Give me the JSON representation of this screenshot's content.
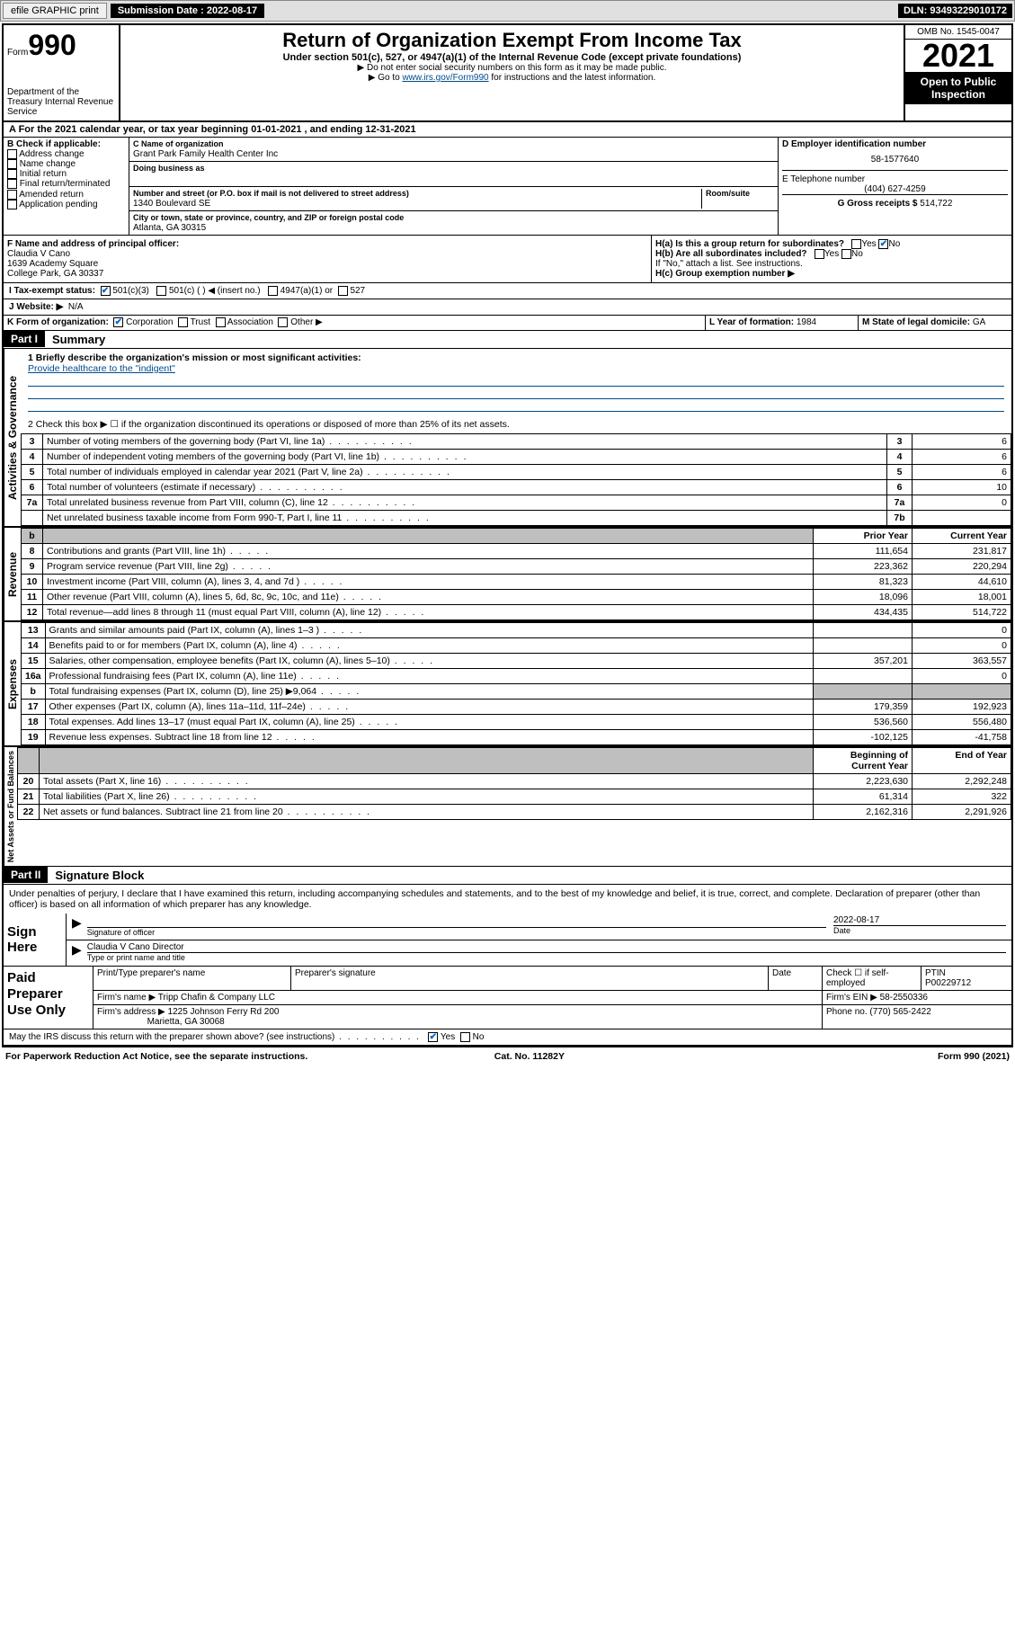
{
  "toolbar": {
    "efile": "efile GRAPHIC print",
    "sub_label": "Submission Date : 2022-08-17",
    "dln": "DLN: 93493229010172"
  },
  "header": {
    "form_prefix": "Form",
    "form_no": "990",
    "dept": "Department of the Treasury Internal Revenue Service",
    "title": "Return of Organization Exempt From Income Tax",
    "sub": "Under section 501(c), 527, or 4947(a)(1) of the Internal Revenue Code (except private foundations)",
    "note1": "▶ Do not enter social security numbers on this form as it may be made public.",
    "note2_pre": "▶ Go to ",
    "note2_link": "www.irs.gov/Form990",
    "note2_post": " for instructions and the latest information.",
    "omb": "OMB No. 1545-0047",
    "year": "2021",
    "open": "Open to Public Inspection"
  },
  "calyear": "A For the 2021 calendar year, or tax year beginning 01-01-2021    , and ending 12-31-2021",
  "box_b": {
    "title": "B Check if applicable:",
    "items": [
      "Address change",
      "Name change",
      "Initial return",
      "Final return/terminated",
      "Amended return",
      "Application pending"
    ]
  },
  "box_c": {
    "name_label": "C Name of organization",
    "name": "Grant Park Family Health Center Inc",
    "dba_label": "Doing business as",
    "street_label": "Number and street (or P.O. box if mail is not delivered to street address)",
    "room_label": "Room/suite",
    "street": "1340 Boulevard SE",
    "city_label": "City or town, state or province, country, and ZIP or foreign postal code",
    "city": "Atlanta, GA  30315"
  },
  "box_d": {
    "label": "D Employer identification number",
    "value": "58-1577640"
  },
  "box_e": {
    "label": "E Telephone number",
    "value": "(404) 627-4259"
  },
  "box_g": {
    "label": "G Gross receipts $",
    "value": "514,722"
  },
  "box_f": {
    "label": "F  Name and address of principal officer:",
    "name": "Claudia V Cano",
    "addr1": "1639 Academy Square",
    "addr2": "College Park, GA  30337"
  },
  "box_h": {
    "ha": "H(a)  Is this a group return for subordinates?",
    "hb": "H(b)  Are all subordinates included?",
    "hb_note": "If \"No,\" attach a list. See instructions.",
    "hc": "H(c)  Group exemption number ▶",
    "yes": "Yes",
    "no": "No"
  },
  "tax_status": {
    "label": "I    Tax-exempt status:",
    "c3": "501(c)(3)",
    "c_other": "501(c) (  ) ◀ (insert no.)",
    "c4947": "4947(a)(1) or",
    "c527": "527"
  },
  "website": {
    "label": "J   Website: ▶",
    "value": "N/A"
  },
  "box_k": {
    "label": "K Form of organization:",
    "corp": "Corporation",
    "trust": "Trust",
    "assoc": "Association",
    "other": "Other ▶"
  },
  "box_l": {
    "label": "L Year of formation:",
    "value": "1984"
  },
  "box_m": {
    "label": "M State of legal domicile:",
    "value": "GA"
  },
  "part1": {
    "header": "Part I",
    "title": "Summary"
  },
  "summary": {
    "mission_label": "1   Briefly describe the organization's mission or most significant activities:",
    "mission": "Provide healthcare to the \"indigent\"",
    "line2": "2   Check this box ▶ ☐  if the organization discontinued its operations or disposed of more than 25% of its net assets.",
    "rows_ag": [
      {
        "n": "3",
        "t": "Number of voting members of the governing body (Part VI, line 1a)",
        "k": "3",
        "v": "6"
      },
      {
        "n": "4",
        "t": "Number of independent voting members of the governing body (Part VI, line 1b)",
        "k": "4",
        "v": "6"
      },
      {
        "n": "5",
        "t": "Total number of individuals employed in calendar year 2021 (Part V, line 2a)",
        "k": "5",
        "v": "6"
      },
      {
        "n": "6",
        "t": "Total number of volunteers (estimate if necessary)",
        "k": "6",
        "v": "10"
      },
      {
        "n": "7a",
        "t": "Total unrelated business revenue from Part VIII, column (C), line 12",
        "k": "7a",
        "v": "0"
      },
      {
        "n": "",
        "t": "Net unrelated business taxable income from Form 990-T, Part I, line 11",
        "k": "7b",
        "v": ""
      }
    ],
    "col_prior": "Prior Year",
    "col_curr": "Current Year",
    "rows_rev": [
      {
        "n": "8",
        "t": "Contributions and grants (Part VIII, line 1h)",
        "p": "111,654",
        "c": "231,817"
      },
      {
        "n": "9",
        "t": "Program service revenue (Part VIII, line 2g)",
        "p": "223,362",
        "c": "220,294"
      },
      {
        "n": "10",
        "t": "Investment income (Part VIII, column (A), lines 3, 4, and 7d )",
        "p": "81,323",
        "c": "44,610"
      },
      {
        "n": "11",
        "t": "Other revenue (Part VIII, column (A), lines 5, 6d, 8c, 9c, 10c, and 11e)",
        "p": "18,096",
        "c": "18,001"
      },
      {
        "n": "12",
        "t": "Total revenue—add lines 8 through 11 (must equal Part VIII, column (A), line 12)",
        "p": "434,435",
        "c": "514,722"
      }
    ],
    "rows_exp": [
      {
        "n": "13",
        "t": "Grants and similar amounts paid (Part IX, column (A), lines 1–3 )",
        "p": "",
        "c": "0"
      },
      {
        "n": "14",
        "t": "Benefits paid to or for members (Part IX, column (A), line 4)",
        "p": "",
        "c": "0"
      },
      {
        "n": "15",
        "t": "Salaries, other compensation, employee benefits (Part IX, column (A), lines 5–10)",
        "p": "357,201",
        "c": "363,557"
      },
      {
        "n": "16a",
        "t": "Professional fundraising fees (Part IX, column (A), line 11e)",
        "p": "",
        "c": "0"
      },
      {
        "n": "b",
        "t": "Total fundraising expenses (Part IX, column (D), line 25) ▶9,064",
        "p": "GREY",
        "c": "GREY"
      },
      {
        "n": "17",
        "t": "Other expenses (Part IX, column (A), lines 11a–11d, 11f–24e)",
        "p": "179,359",
        "c": "192,923"
      },
      {
        "n": "18",
        "t": "Total expenses. Add lines 13–17 (must equal Part IX, column (A), line 25)",
        "p": "536,560",
        "c": "556,480"
      },
      {
        "n": "19",
        "t": "Revenue less expenses. Subtract line 18 from line 12",
        "p": "-102,125",
        "c": "-41,758"
      }
    ],
    "col_begin": "Beginning of Current Year",
    "col_end": "End of Year",
    "rows_net": [
      {
        "n": "20",
        "t": "Total assets (Part X, line 16)",
        "p": "2,223,630",
        "c": "2,292,248"
      },
      {
        "n": "21",
        "t": "Total liabilities (Part X, line 26)",
        "p": "61,314",
        "c": "322"
      },
      {
        "n": "22",
        "t": "Net assets or fund balances. Subtract line 21 from line 20",
        "p": "2,162,316",
        "c": "2,291,926"
      }
    ],
    "vlabels": {
      "ag": "Activities & Governance",
      "rev": "Revenue",
      "exp": "Expenses",
      "net": "Net Assets or Fund Balances"
    }
  },
  "part2": {
    "header": "Part II",
    "title": "Signature Block"
  },
  "sig": {
    "decl": "Under penalties of perjury, I declare that I have examined this return, including accompanying schedules and statements, and to the best of my knowledge and belief, it is true, correct, and complete. Declaration of preparer (other than officer) is based on all information of which preparer has any knowledge.",
    "sign_here": "Sign Here",
    "sig_officer": "Signature of officer",
    "date": "Date",
    "sig_date": "2022-08-17",
    "name_title": "Claudia V Cano  Director",
    "type_label": "Type or print name and title"
  },
  "paid": {
    "label": "Paid Preparer Use Only",
    "print_name": "Print/Type preparer's name",
    "prep_sig": "Preparer's signature",
    "date": "Date",
    "check_if": "Check ☐ if self-employed",
    "ptin_label": "PTIN",
    "ptin": "P00229712",
    "firm_name_label": "Firm's name   ▶",
    "firm_name": "Tripp Chafin & Company LLC",
    "firm_ein_label": "Firm's EIN ▶",
    "firm_ein": "58-2550336",
    "firm_addr_label": "Firm's address ▶",
    "firm_addr1": "1225 Johnson Ferry Rd 200",
    "firm_addr2": "Marietta, GA  30068",
    "phone_label": "Phone no.",
    "phone": "(770) 565-2422"
  },
  "may_irs": "May the IRS discuss this return with the preparer shown above? (see instructions)",
  "footer": {
    "left": "For Paperwork Reduction Act Notice, see the separate instructions.",
    "mid": "Cat. No. 11282Y",
    "right": "Form 990 (2021)"
  }
}
